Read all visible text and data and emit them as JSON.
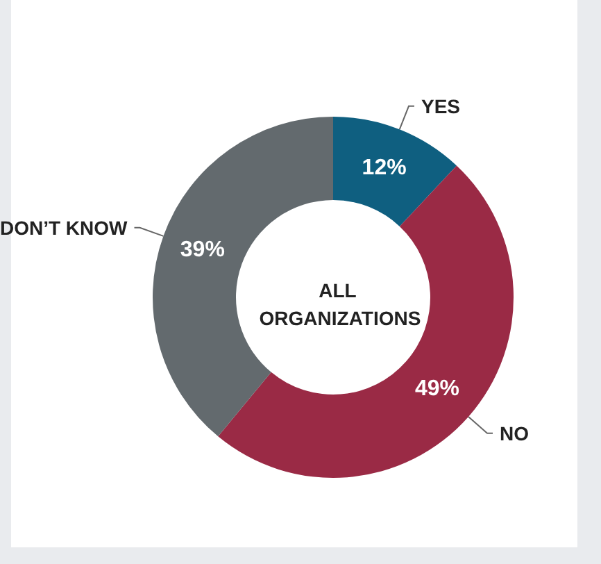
{
  "chart_data": {
    "type": "donut",
    "title": "ALL ORGANIZATIONS",
    "categories": [
      "YES",
      "NO",
      "DON’T KNOW"
    ],
    "values": [
      12,
      49,
      39
    ],
    "value_labels": [
      "12%",
      "49%",
      "39%"
    ],
    "colors": [
      "#0f5f80",
      "#9a2a45",
      "#636a6e"
    ],
    "legend": false
  }
}
